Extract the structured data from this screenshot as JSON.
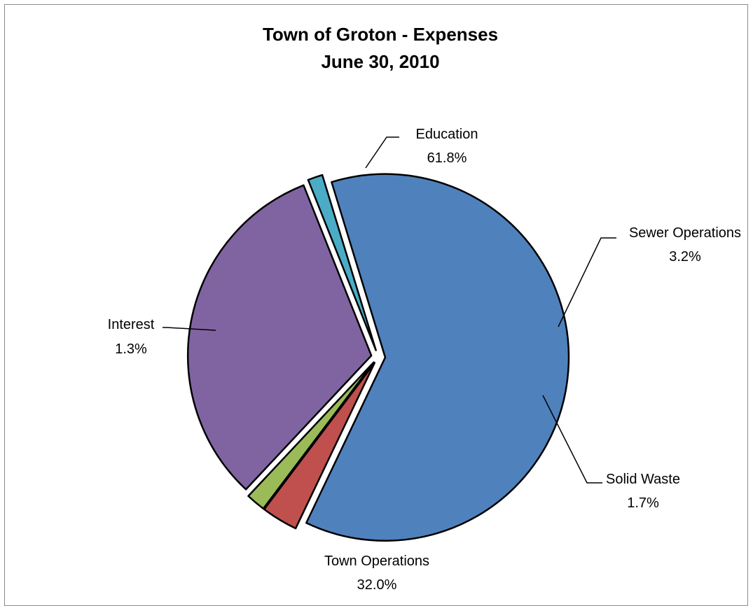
{
  "chart_data": {
    "type": "pie",
    "title": "Town of Groton - Expenses",
    "subtitle": "June 30, 2010",
    "slices": [
      {
        "category": "Education",
        "percent_label": "61.8%",
        "value": 61.8,
        "color": "#4f81bd"
      },
      {
        "category": "Sewer Operations",
        "percent_label": "3.2%",
        "value": 3.2,
        "color": "#c0504d"
      },
      {
        "category": "Solid Waste",
        "percent_label": "1.7%",
        "value": 1.7,
        "color": "#9bbb59"
      },
      {
        "category": "Town Operations",
        "percent_label": "32.0%",
        "value": 32.0,
        "color": "#8064a2"
      },
      {
        "category": "Interest",
        "percent_label": "1.3%",
        "value": 1.3,
        "color": "#4bacc6"
      }
    ],
    "exploded": true,
    "legend": "none"
  }
}
